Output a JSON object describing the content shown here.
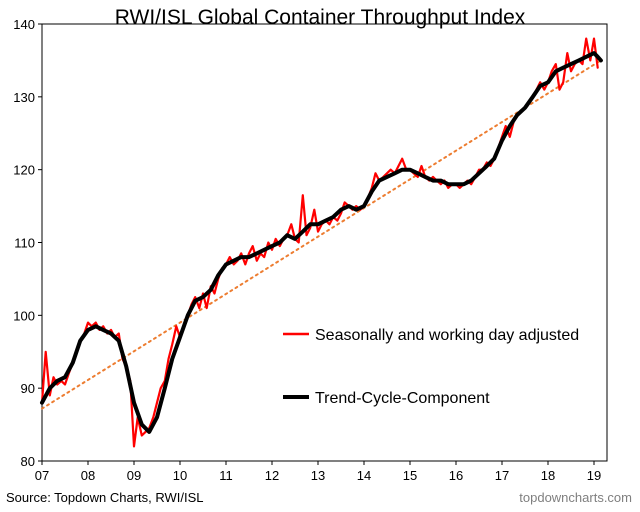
{
  "chart_data": {
    "type": "line",
    "title": "RWI/ISL Global Container Throughput Index",
    "xlabel": "",
    "ylabel": "",
    "x_ticks": [
      "07",
      "08",
      "09",
      "10",
      "11",
      "12",
      "13",
      "14",
      "15",
      "16",
      "17",
      "18",
      "19"
    ],
    "y_ticks": [
      80,
      90,
      100,
      110,
      120,
      130,
      140
    ],
    "xlim": [
      2007,
      2019.15
    ],
    "ylim": [
      80,
      140
    ],
    "grid": false,
    "legend_position": "right-middle",
    "series": [
      {
        "name": "Seasonally and working day adjusted",
        "color": "#ff0000",
        "style": "solid",
        "points": [
          [
            2007.0,
            88
          ],
          [
            2007.08,
            95
          ],
          [
            2007.17,
            89
          ],
          [
            2007.25,
            91.5
          ],
          [
            2007.33,
            90.5
          ],
          [
            2007.42,
            91
          ],
          [
            2007.5,
            90.5
          ],
          [
            2007.58,
            92
          ],
          [
            2007.67,
            93.5
          ],
          [
            2007.75,
            95
          ],
          [
            2007.83,
            96.5
          ],
          [
            2007.92,
            97.5
          ],
          [
            2008.0,
            99
          ],
          [
            2008.08,
            98.5
          ],
          [
            2008.17,
            99
          ],
          [
            2008.25,
            98
          ],
          [
            2008.33,
            98.5
          ],
          [
            2008.42,
            97.5
          ],
          [
            2008.5,
            98
          ],
          [
            2008.58,
            97
          ],
          [
            2008.67,
            97.5
          ],
          [
            2008.75,
            94
          ],
          [
            2008.83,
            93
          ],
          [
            2008.92,
            91
          ],
          [
            2009.0,
            82
          ],
          [
            2009.08,
            86
          ],
          [
            2009.17,
            83.5
          ],
          [
            2009.25,
            84
          ],
          [
            2009.33,
            84.5
          ],
          [
            2009.42,
            86
          ],
          [
            2009.5,
            88
          ],
          [
            2009.58,
            90
          ],
          [
            2009.67,
            91
          ],
          [
            2009.75,
            94
          ],
          [
            2009.83,
            96
          ],
          [
            2009.92,
            98.5
          ],
          [
            2010.0,
            97
          ],
          [
            2010.08,
            98.5
          ],
          [
            2010.17,
            100
          ],
          [
            2010.25,
            101.5
          ],
          [
            2010.33,
            102.5
          ],
          [
            2010.42,
            101
          ],
          [
            2010.5,
            103
          ],
          [
            2010.58,
            101
          ],
          [
            2010.67,
            104
          ],
          [
            2010.75,
            103
          ],
          [
            2010.83,
            105
          ],
          [
            2010.92,
            106.5
          ],
          [
            2011.0,
            107
          ],
          [
            2011.08,
            108
          ],
          [
            2011.17,
            107
          ],
          [
            2011.25,
            107.5
          ],
          [
            2011.33,
            108.5
          ],
          [
            2011.42,
            107
          ],
          [
            2011.5,
            108.5
          ],
          [
            2011.58,
            109.5
          ],
          [
            2011.67,
            107.5
          ],
          [
            2011.75,
            108.5
          ],
          [
            2011.83,
            108
          ],
          [
            2011.92,
            110
          ],
          [
            2012.0,
            109
          ],
          [
            2012.08,
            110.5
          ],
          [
            2012.17,
            109.5
          ],
          [
            2012.25,
            110.5
          ],
          [
            2012.33,
            111
          ],
          [
            2012.42,
            112.5
          ],
          [
            2012.5,
            110.5
          ],
          [
            2012.58,
            110
          ],
          [
            2012.67,
            116.5
          ],
          [
            2012.75,
            111
          ],
          [
            2012.83,
            112
          ],
          [
            2012.92,
            114.5
          ],
          [
            2013.0,
            111.5
          ],
          [
            2013.08,
            112.5
          ],
          [
            2013.17,
            113
          ],
          [
            2013.25,
            112.5
          ],
          [
            2013.33,
            113.5
          ],
          [
            2013.42,
            113
          ],
          [
            2013.5,
            114
          ],
          [
            2013.58,
            115.5
          ],
          [
            2013.67,
            115
          ],
          [
            2013.75,
            114.5
          ],
          [
            2013.83,
            115
          ],
          [
            2013.92,
            114.5
          ],
          [
            2014.0,
            115
          ],
          [
            2014.08,
            116
          ],
          [
            2014.17,
            117.5
          ],
          [
            2014.25,
            119.5
          ],
          [
            2014.33,
            118.5
          ],
          [
            2014.42,
            119
          ],
          [
            2014.5,
            119.5
          ],
          [
            2014.58,
            120
          ],
          [
            2014.67,
            119.5
          ],
          [
            2014.75,
            120.5
          ],
          [
            2014.83,
            121.5
          ],
          [
            2014.92,
            120
          ],
          [
            2015.0,
            120
          ],
          [
            2015.08,
            119.5
          ],
          [
            2015.17,
            119
          ],
          [
            2015.25,
            120.5
          ],
          [
            2015.33,
            119
          ],
          [
            2015.42,
            118.5
          ],
          [
            2015.5,
            119
          ],
          [
            2015.58,
            118.5
          ],
          [
            2015.67,
            118
          ],
          [
            2015.75,
            118.5
          ],
          [
            2015.83,
            117.5
          ],
          [
            2015.92,
            118
          ],
          [
            2016.0,
            118
          ],
          [
            2016.08,
            117.5
          ],
          [
            2016.17,
            118
          ],
          [
            2016.25,
            118.5
          ],
          [
            2016.33,
            118
          ],
          [
            2016.42,
            119
          ],
          [
            2016.5,
            120
          ],
          [
            2016.58,
            120
          ],
          [
            2016.67,
            121
          ],
          [
            2016.75,
            120.5
          ],
          [
            2016.83,
            121.5
          ],
          [
            2016.92,
            123
          ],
          [
            2017.0,
            124.5
          ],
          [
            2017.08,
            126
          ],
          [
            2017.17,
            124.5
          ],
          [
            2017.25,
            126.5
          ],
          [
            2017.33,
            127.5
          ],
          [
            2017.42,
            128
          ],
          [
            2017.5,
            128.5
          ],
          [
            2017.58,
            129
          ],
          [
            2017.67,
            130
          ],
          [
            2017.75,
            131
          ],
          [
            2017.83,
            132
          ],
          [
            2017.92,
            131
          ],
          [
            2018.0,
            132
          ],
          [
            2018.08,
            133.5
          ],
          [
            2018.17,
            134.5
          ],
          [
            2018.25,
            131
          ],
          [
            2018.33,
            132
          ],
          [
            2018.42,
            136
          ],
          [
            2018.5,
            133.5
          ],
          [
            2018.58,
            134.5
          ],
          [
            2018.67,
            135
          ],
          [
            2018.75,
            134.5
          ],
          [
            2018.83,
            138
          ],
          [
            2018.92,
            135
          ],
          [
            2019.0,
            138
          ],
          [
            2019.08,
            134
          ]
        ]
      },
      {
        "name": "Trend-Cycle-Component",
        "color": "#000000",
        "style": "solid",
        "points": [
          [
            2007.0,
            88
          ],
          [
            2007.17,
            90
          ],
          [
            2007.33,
            91
          ],
          [
            2007.5,
            91.5
          ],
          [
            2007.67,
            93.5
          ],
          [
            2007.83,
            96.5
          ],
          [
            2008.0,
            98
          ],
          [
            2008.17,
            98.5
          ],
          [
            2008.33,
            98
          ],
          [
            2008.5,
            97.5
          ],
          [
            2008.67,
            96.5
          ],
          [
            2008.83,
            93
          ],
          [
            2009.0,
            88
          ],
          [
            2009.17,
            85
          ],
          [
            2009.33,
            84
          ],
          [
            2009.5,
            86
          ],
          [
            2009.67,
            90
          ],
          [
            2009.83,
            94
          ],
          [
            2010.0,
            97
          ],
          [
            2010.17,
            100
          ],
          [
            2010.33,
            102
          ],
          [
            2010.5,
            102.5
          ],
          [
            2010.67,
            103.5
          ],
          [
            2010.83,
            105.5
          ],
          [
            2011.0,
            107
          ],
          [
            2011.17,
            107.5
          ],
          [
            2011.33,
            108
          ],
          [
            2011.5,
            108
          ],
          [
            2011.67,
            108.5
          ],
          [
            2011.83,
            109
          ],
          [
            2012.0,
            109.5
          ],
          [
            2012.17,
            110
          ],
          [
            2012.33,
            111
          ],
          [
            2012.5,
            110.5
          ],
          [
            2012.67,
            111.5
          ],
          [
            2012.83,
            112.5
          ],
          [
            2013.0,
            112.5
          ],
          [
            2013.17,
            113
          ],
          [
            2013.33,
            113.5
          ],
          [
            2013.5,
            114.5
          ],
          [
            2013.67,
            115
          ],
          [
            2013.83,
            114.5
          ],
          [
            2014.0,
            115
          ],
          [
            2014.17,
            117
          ],
          [
            2014.33,
            118.5
          ],
          [
            2014.5,
            119
          ],
          [
            2014.67,
            119.5
          ],
          [
            2014.83,
            120
          ],
          [
            2015.0,
            120
          ],
          [
            2015.17,
            119.5
          ],
          [
            2015.33,
            119
          ],
          [
            2015.5,
            118.5
          ],
          [
            2015.67,
            118.5
          ],
          [
            2015.83,
            118
          ],
          [
            2016.0,
            118
          ],
          [
            2016.17,
            118
          ],
          [
            2016.33,
            118.5
          ],
          [
            2016.5,
            119.5
          ],
          [
            2016.67,
            120.5
          ],
          [
            2016.83,
            121.5
          ],
          [
            2017.0,
            124
          ],
          [
            2017.17,
            126
          ],
          [
            2017.33,
            127.5
          ],
          [
            2017.5,
            128.5
          ],
          [
            2017.67,
            130
          ],
          [
            2017.83,
            131.5
          ],
          [
            2018.0,
            132
          ],
          [
            2018.17,
            133.5
          ],
          [
            2018.33,
            134
          ],
          [
            2018.5,
            134.5
          ],
          [
            2018.67,
            135
          ],
          [
            2018.83,
            135.5
          ],
          [
            2019.0,
            136
          ],
          [
            2019.08,
            135.5
          ],
          [
            2019.15,
            135
          ]
        ]
      },
      {
        "name": "",
        "color": "#ed7d31",
        "style": "dotted",
        "points": [
          [
            2007.0,
            87.2
          ],
          [
            2019.15,
            135
          ]
        ]
      }
    ],
    "legend": [
      {
        "label": "Seasonally and working day adjusted",
        "color": "#ff0000"
      },
      {
        "label": "Trend-Cycle-Component",
        "color": "#000000"
      }
    ]
  },
  "source": "Source: Topdown Charts, RWI/ISL",
  "watermark": "topdowncharts.com"
}
